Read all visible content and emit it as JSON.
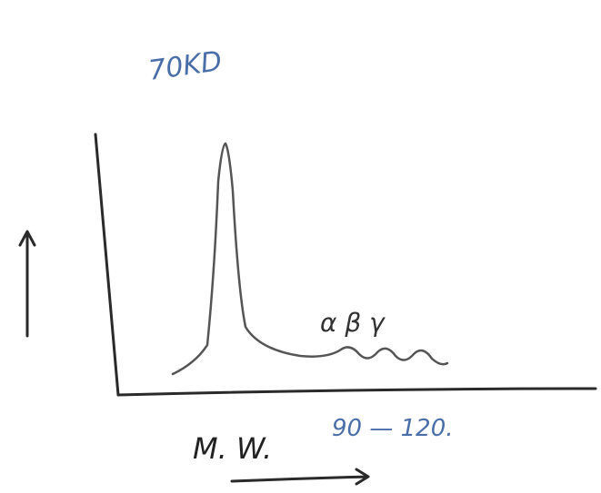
{
  "peak_label": "70KD",
  "globulin_label": "α β γ",
  "x_axis_label": "M. W.",
  "range_label": "90 — 120."
}
